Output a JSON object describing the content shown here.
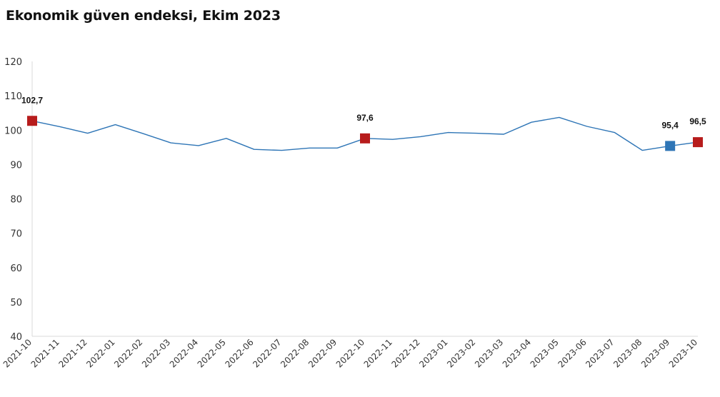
{
  "chart_data": {
    "type": "line",
    "title": "Ekonomik güven endeksi, Ekim 2023",
    "xlabel": "",
    "ylabel": "",
    "ylim": [
      40,
      120
    ],
    "yticks": [
      40,
      50,
      60,
      70,
      80,
      90,
      100,
      110,
      120
    ],
    "categories": [
      "2021-10",
      "2021-11",
      "2021-12",
      "2022-01",
      "2022-02",
      "2022-03",
      "2022-04",
      "2022-05",
      "2022-06",
      "2022-07",
      "2022-08",
      "2022-09",
      "2022-10",
      "2022-11",
      "2022-12",
      "2023-01",
      "2023-02",
      "2023-03",
      "2023-04",
      "2023-05",
      "2023-06",
      "2023-07",
      "2023-08",
      "2023-09",
      "2023-10"
    ],
    "series": [
      {
        "values": [
          102.7,
          101.0,
          99.1,
          101.6,
          99.0,
          96.3,
          95.5,
          97.6,
          94.4,
          94.1,
          94.8,
          94.8,
          97.6,
          97.3,
          98.1,
          99.3,
          99.1,
          98.8,
          102.3,
          103.7,
          101.1,
          99.3,
          94.1,
          95.4,
          96.5
        ],
        "color": "#2e75b6"
      }
    ],
    "markers": [
      {
        "index": 0,
        "label": "102,7",
        "color": "#b71c1c"
      },
      {
        "index": 12,
        "label": "97,6",
        "color": "#b71c1c"
      },
      {
        "index": 23,
        "label": "95,4",
        "color": "#2e75b6"
      },
      {
        "index": 24,
        "label": "96,5",
        "color": "#b71c1c"
      }
    ],
    "grid": false,
    "legend": "none"
  }
}
